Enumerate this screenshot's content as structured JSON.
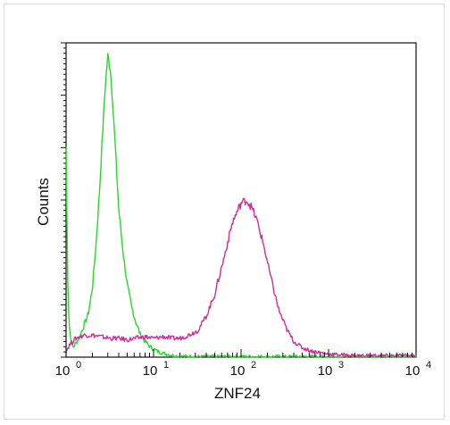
{
  "chart_data": {
    "type": "line",
    "title": "",
    "xlabel": "ZNF24",
    "ylabel": "Counts",
    "x_scale": "log",
    "xlim": [
      1,
      10000
    ],
    "ylim": [
      0,
      1
    ],
    "grid": false,
    "x_ticks": [
      {
        "base": "10",
        "exp": "0",
        "value": 1
      },
      {
        "base": "10",
        "exp": "1",
        "value": 10
      },
      {
        "base": "10",
        "exp": "2",
        "value": 100
      },
      {
        "base": "10",
        "exp": "3",
        "value": 1000
      },
      {
        "base": "10",
        "exp": "4",
        "value": 10000
      }
    ],
    "series": [
      {
        "color": "#22dd22",
        "x": [
          1.0,
          1.05,
          1.1,
          1.2,
          1.4,
          1.6,
          1.8,
          2.0,
          2.2,
          2.4,
          2.6,
          2.8,
          3.0,
          3.2,
          3.4,
          3.7,
          4.0,
          4.5,
          5.0,
          5.6,
          6.3,
          7.1,
          8.0,
          9.0,
          10.0,
          12.0,
          14.0,
          17.0,
          20.0,
          30.0,
          100.0,
          1000.0,
          10000.0
        ],
        "y": [
          0.67,
          0.2,
          0.08,
          0.03,
          0.06,
          0.1,
          0.14,
          0.22,
          0.36,
          0.52,
          0.7,
          0.86,
          0.96,
          0.92,
          0.82,
          0.64,
          0.47,
          0.33,
          0.23,
          0.16,
          0.11,
          0.07,
          0.05,
          0.035,
          0.025,
          0.015,
          0.01,
          0.005,
          0.003,
          0.002,
          0.002,
          0.002,
          0.002
        ]
      },
      {
        "color": "#d42a9a",
        "x": [
          1.0,
          1.1,
          1.3,
          1.6,
          2.0,
          2.5,
          3.2,
          4.0,
          5.0,
          6.3,
          8.0,
          10.0,
          13.0,
          16.0,
          20.0,
          25.0,
          32.0,
          40.0,
          50.0,
          63.0,
          80.0,
          100.0,
          115.0,
          130.0,
          150.0,
          180.0,
          220.0,
          270.0,
          330.0,
          400.0,
          500.0,
          630.0,
          800.0,
          1000.0,
          2000.0,
          10000.0
        ],
        "y": [
          0.02,
          0.04,
          0.06,
          0.07,
          0.07,
          0.065,
          0.06,
          0.06,
          0.055,
          0.06,
          0.065,
          0.06,
          0.065,
          0.06,
          0.06,
          0.07,
          0.085,
          0.13,
          0.2,
          0.31,
          0.43,
          0.49,
          0.5,
          0.48,
          0.44,
          0.36,
          0.25,
          0.15,
          0.09,
          0.05,
          0.03,
          0.02,
          0.015,
          0.01,
          0.005,
          0.005
        ]
      }
    ]
  }
}
